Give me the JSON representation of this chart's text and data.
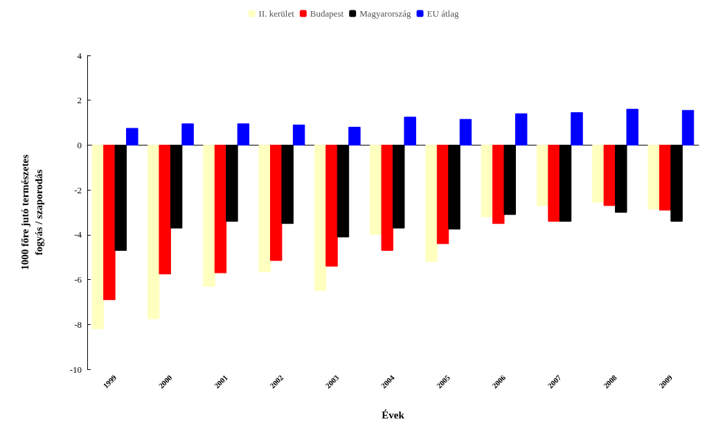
{
  "chart_data": {
    "type": "bar",
    "xlabel": "Évek",
    "ylabel": "1000 főre jutó természetes\nfogyás / szaporodás",
    "categories": [
      "1999",
      "2000",
      "2001",
      "2002",
      "2003",
      "2004",
      "2005",
      "2006",
      "2007",
      "2008",
      "2009"
    ],
    "series": [
      {
        "name": "II. kerület",
        "color": "#ffffc0",
        "values": [
          -8.2,
          -7.75,
          -6.3,
          -5.65,
          -6.5,
          -4.0,
          -5.2,
          -3.2,
          -2.7,
          -2.55,
          -2.85
        ]
      },
      {
        "name": "Budapest",
        "color": "#ff0000",
        "values": [
          -6.9,
          -5.75,
          -5.7,
          -5.15,
          -5.4,
          -4.7,
          -4.4,
          -3.5,
          -3.4,
          -2.7,
          -2.9
        ]
      },
      {
        "name": "Magyarország",
        "color": "#000000",
        "values": [
          -4.7,
          -3.7,
          -3.4,
          -3.5,
          -4.1,
          -3.7,
          -3.75,
          -3.1,
          -3.4,
          -3.0,
          -3.4
        ]
      },
      {
        "name": "EU átlag",
        "color": "#0000ff",
        "values": [
          0.75,
          0.95,
          0.95,
          0.9,
          0.8,
          1.25,
          1.15,
          1.4,
          1.45,
          1.6,
          1.55
        ]
      }
    ],
    "ylim": [
      -10,
      4
    ],
    "yticks": [
      -10,
      -8,
      -6,
      -4,
      -2,
      0,
      2,
      4
    ],
    "legend": "top"
  }
}
